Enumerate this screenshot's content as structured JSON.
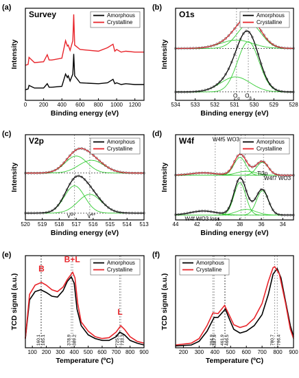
{
  "colors": {
    "amorphous": "#000000",
    "crystalline": "#e8242a",
    "fit": "#33cc33",
    "guide": "#888888"
  },
  "chart_data": [
    {
      "id": "a",
      "panel_label": "(a)",
      "type": "line",
      "title": "Survey",
      "xlabel": "Binding energy (eV)",
      "ylabel": "Intensity",
      "xlim": [
        0,
        1300
      ],
      "xticks": [
        "0",
        "200",
        "400",
        "600",
        "800",
        "1000",
        "1200"
      ],
      "yticks_shown": false,
      "legend": [
        "Amorphous",
        "Crystalline"
      ],
      "legend_position": "top-right",
      "series": [
        {
          "name": "Amorphous",
          "x": [
            0,
            30,
            40,
            100,
            200,
            240,
            260,
            290,
            400,
            440,
            460,
            470,
            490,
            520,
            530,
            540,
            600,
            800,
            900,
            960,
            980,
            1000,
            1050,
            1100,
            1200,
            1300
          ],
          "y": [
            0.12,
            0.13,
            0.17,
            0.14,
            0.14,
            0.19,
            0.15,
            0.15,
            0.16,
            0.3,
            0.26,
            0.28,
            0.22,
            0.3,
            0.53,
            0.28,
            0.2,
            0.19,
            0.2,
            0.24,
            0.19,
            0.2,
            0.18,
            0.19,
            0.18,
            0.18
          ]
        },
        {
          "name": "Crystalline",
          "x": [
            0,
            30,
            40,
            100,
            200,
            240,
            260,
            290,
            400,
            440,
            460,
            470,
            490,
            520,
            530,
            540,
            600,
            800,
            900,
            960,
            980,
            1000,
            1050,
            1100,
            1200,
            1300
          ],
          "y": [
            0.4,
            0.41,
            0.49,
            0.43,
            0.44,
            0.52,
            0.46,
            0.46,
            0.48,
            0.68,
            0.62,
            0.63,
            0.57,
            0.68,
            0.98,
            0.63,
            0.58,
            0.56,
            0.6,
            0.64,
            0.56,
            0.58,
            0.55,
            0.56,
            0.55,
            0.55
          ]
        }
      ]
    },
    {
      "id": "b",
      "panel_label": "(b)",
      "type": "line",
      "title": "O1s",
      "xlabel": "Binding energy (eV)",
      "ylabel": "Intensity",
      "x_reversed": true,
      "xlim": [
        534,
        528
      ],
      "xticks": [
        "534",
        "533",
        "532",
        "531",
        "530",
        "529",
        "528"
      ],
      "legend": [
        "Amorphous",
        "Crystalline"
      ],
      "legend_position": "top-right",
      "guides_x": [
        530.9,
        530.3
      ],
      "annotations": [
        {
          "text": "O",
          "sub": "α",
          "x": 530.9
        },
        {
          "text": "O",
          "sub": "β",
          "x": 530.3
        }
      ],
      "series": [
        {
          "name": "Amorphous",
          "baseline": 0.1,
          "peaks": [
            {
              "c": 530.3,
              "w": 0.55,
              "h": 0.6
            },
            {
              "c": 530.95,
              "w": 0.75,
              "h": 0.18
            }
          ]
        },
        {
          "name": "Crystalline",
          "baseline": 0.62,
          "peaks": [
            {
              "c": 530.25,
              "w": 0.6,
              "h": 0.3
            },
            {
              "c": 530.9,
              "w": 0.8,
              "h": 0.1
            }
          ]
        }
      ]
    },
    {
      "id": "c",
      "panel_label": "(c)",
      "type": "line",
      "title": "V2p",
      "xlabel": "Binding energy (eV)",
      "ylabel": "Intensity",
      "x_reversed": true,
      "xlim": [
        520,
        513
      ],
      "xticks": [
        "520",
        "519",
        "518",
        "517",
        "516",
        "515",
        "514",
        "513"
      ],
      "legend": [
        "Amorphous",
        "Crystalline"
      ],
      "legend_position": "top-right",
      "guides_x": [
        517.1,
        516.2
      ],
      "annotations": [
        {
          "text": "V",
          "sup": "5+",
          "x": 517.3
        },
        {
          "text": "V",
          "sup": "4+",
          "x": 516.1
        }
      ],
      "series": [
        {
          "name": "Amorphous",
          "baseline": 0.08,
          "peaks": [
            {
              "c": 517.1,
              "w": 0.6,
              "h": 0.32
            },
            {
              "c": 516.2,
              "w": 0.7,
              "h": 0.22
            }
          ]
        },
        {
          "name": "Crystalline",
          "baseline": 0.55,
          "peaks": [
            {
              "c": 517.0,
              "w": 0.65,
              "h": 0.2
            },
            {
              "c": 516.1,
              "w": 0.75,
              "h": 0.15
            }
          ]
        }
      ]
    },
    {
      "id": "d",
      "panel_label": "(d)",
      "type": "line",
      "title": "W4f",
      "xlabel": "Binding energy (eV)",
      "ylabel": "Intensity",
      "x_reversed": true,
      "xlim": [
        44,
        33
      ],
      "xticks": [
        "44",
        "42",
        "40",
        "38",
        "36",
        "34"
      ],
      "legend": [
        "Amorphous",
        "Crystalline"
      ],
      "legend_position": "top-right",
      "guides_x": [
        40.3,
        37.9,
        37.5,
        35.8
      ],
      "annotations": [
        "W4f5 WO3",
        "Ti3p",
        "W4f7 WO3",
        "W4f WO3 loss"
      ],
      "series": [
        {
          "name": "Amorphous",
          "baseline": 0.06,
          "peaks": [
            {
              "c": 35.9,
              "w": 0.55,
              "h": 0.3
            },
            {
              "c": 38.0,
              "w": 0.55,
              "h": 0.4
            },
            {
              "c": 37.4,
              "w": 0.9,
              "h": 0.07
            },
            {
              "c": 41.4,
              "w": 1.2,
              "h": 0.05
            }
          ]
        },
        {
          "name": "Crystalline",
          "baseline": 0.55,
          "peaks": [
            {
              "c": 35.9,
              "w": 0.55,
              "h": 0.16
            },
            {
              "c": 38.0,
              "w": 0.55,
              "h": 0.22
            },
            {
              "c": 37.4,
              "w": 0.9,
              "h": 0.05
            },
            {
              "c": 41.4,
              "w": 1.2,
              "h": 0.03
            }
          ]
        }
      ]
    },
    {
      "id": "e",
      "panel_label": "(e)",
      "type": "line",
      "title": "",
      "xlabel": "Temperature (ºC)",
      "ylabel": "TCD signal (a.u.)",
      "xlim": [
        50,
        900
      ],
      "xticks": [
        "100",
        "200",
        "300",
        "400",
        "500",
        "600",
        "700",
        "800",
        "900"
      ],
      "legend": [
        "Amorphous",
        "Crystalline"
      ],
      "legend_position": "top-right",
      "guides_x": [
        160.1,
        165.1,
        378.9,
        389.2,
        725.9,
        733.3
      ],
      "guide_labels": [
        "160.1",
        "165.1",
        "378.9",
        "389.2",
        "725.9",
        "733.3"
      ],
      "region_labels": [
        {
          "text": "B",
          "x": 165
        },
        {
          "text": "B+L",
          "x": 385
        },
        {
          "text": "L",
          "x": 728
        }
      ],
      "series": [
        {
          "name": "Amorphous",
          "x": [
            50,
            80,
            120,
            160,
            200,
            240,
            280,
            320,
            350,
            378.9,
            400,
            420,
            450,
            500,
            550,
            600,
            650,
            700,
            725.9,
            760,
            800,
            850,
            900
          ],
          "y": [
            0.1,
            0.52,
            0.61,
            0.63,
            0.6,
            0.56,
            0.55,
            0.62,
            0.72,
            0.77,
            0.7,
            0.42,
            0.24,
            0.14,
            0.1,
            0.08,
            0.08,
            0.12,
            0.17,
            0.14,
            0.08,
            0.05,
            0.03
          ]
        },
        {
          "name": "Crystalline",
          "x": [
            50,
            80,
            120,
            165.1,
            200,
            240,
            280,
            320,
            350,
            389.2,
            405,
            425,
            450,
            500,
            550,
            600,
            650,
            700,
            733.3,
            760,
            800,
            850,
            900
          ],
          "y": [
            0.1,
            0.58,
            0.68,
            0.71,
            0.68,
            0.63,
            0.61,
            0.66,
            0.74,
            0.82,
            0.76,
            0.48,
            0.28,
            0.18,
            0.12,
            0.1,
            0.11,
            0.17,
            0.24,
            0.2,
            0.12,
            0.07,
            0.05
          ]
        }
      ]
    },
    {
      "id": "f",
      "panel_label": "(f)",
      "type": "line",
      "title": "",
      "xlabel": "Temperature (ºC)",
      "ylabel": "TCD signal (a.u.)",
      "xlim": [
        150,
        900
      ],
      "xticks": [
        "200",
        "300",
        "400",
        "500",
        "600",
        "700",
        "800",
        "900"
      ],
      "legend": [
        "Amorphous",
        "Crystalline"
      ],
      "legend_position": "top-left",
      "guides_x": [
        394.9,
        387.9,
        461.9,
        466.5,
        780.7,
        796.4
      ],
      "guide_labels": [
        "394.9",
        "387.9",
        "461.9",
        "466.5",
        "780.7",
        "796.4"
      ],
      "series": [
        {
          "name": "Amorphous",
          "x": [
            150,
            250,
            300,
            350,
            394.9,
            420,
            466.5,
            490,
            520,
            560,
            600,
            650,
            700,
            740,
            770,
            796.4,
            820,
            850,
            880,
            900
          ],
          "y": [
            0.02,
            0.03,
            0.07,
            0.18,
            0.33,
            0.33,
            0.42,
            0.32,
            0.2,
            0.16,
            0.18,
            0.24,
            0.36,
            0.58,
            0.8,
            0.86,
            0.76,
            0.5,
            0.24,
            0.12
          ]
        },
        {
          "name": "Crystalline",
          "x": [
            150,
            250,
            300,
            350,
            387.9,
            420,
            461.9,
            490,
            520,
            560,
            600,
            650,
            700,
            740,
            770,
            780.7,
            810,
            850,
            880,
            900
          ],
          "y": [
            0.03,
            0.05,
            0.1,
            0.24,
            0.38,
            0.37,
            0.46,
            0.36,
            0.25,
            0.22,
            0.24,
            0.32,
            0.48,
            0.72,
            0.87,
            0.88,
            0.8,
            0.48,
            0.2,
            0.1
          ]
        }
      ]
    }
  ]
}
